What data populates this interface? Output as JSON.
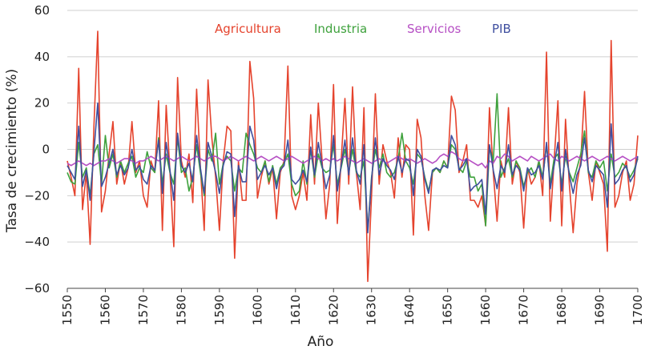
{
  "chart_data": {
    "type": "line",
    "xlabel": "Año",
    "ylabel": "Tasa de crecimiento (%)",
    "x": [
      1550,
      1551,
      1552,
      1553,
      1554,
      1555,
      1556,
      1557,
      1558,
      1559,
      1560,
      1561,
      1562,
      1563,
      1564,
      1565,
      1566,
      1567,
      1568,
      1569,
      1570,
      1571,
      1572,
      1573,
      1574,
      1575,
      1576,
      1577,
      1578,
      1579,
      1580,
      1581,
      1582,
      1583,
      1584,
      1585,
      1586,
      1587,
      1588,
      1589,
      1590,
      1591,
      1592,
      1593,
      1594,
      1595,
      1596,
      1597,
      1598,
      1599,
      1600,
      1601,
      1602,
      1603,
      1604,
      1605,
      1606,
      1607,
      1608,
      1609,
      1610,
      1611,
      1612,
      1613,
      1614,
      1615,
      1616,
      1617,
      1618,
      1619,
      1620,
      1621,
      1622,
      1623,
      1624,
      1625,
      1626,
      1627,
      1628,
      1629,
      1630,
      1631,
      1632,
      1633,
      1634,
      1635,
      1636,
      1637,
      1638,
      1639,
      1640,
      1641,
      1642,
      1643,
      1644,
      1645,
      1646,
      1647,
      1648,
      1649,
      1650,
      1651,
      1652,
      1653,
      1654,
      1655,
      1656,
      1657,
      1658,
      1659,
      1660,
      1661,
      1662,
      1663,
      1664,
      1665,
      1666,
      1667,
      1668,
      1669,
      1670,
      1671,
      1672,
      1673,
      1674,
      1675,
      1676,
      1677,
      1678,
      1679,
      1680,
      1681,
      1682,
      1683,
      1684,
      1685,
      1686,
      1687,
      1688,
      1689,
      1690,
      1691,
      1692,
      1693,
      1694,
      1695,
      1696,
      1697,
      1698,
      1699,
      1700
    ],
    "series": [
      {
        "name": "Agricultura",
        "color": "#e5432d",
        "values": [
          -5,
          -12,
          -20,
          35,
          -26,
          -10,
          -41,
          10,
          51,
          -27,
          -18,
          -2,
          12,
          -15,
          -5,
          -15,
          -8,
          12,
          -10,
          -5,
          -20,
          -25,
          -5,
          -10,
          21,
          -35,
          19,
          -10,
          -42,
          31,
          -5,
          -12,
          -2,
          -23,
          26,
          -8,
          -35,
          30,
          5,
          -12,
          -35,
          -5,
          10,
          8,
          -47,
          -5,
          -22,
          -22,
          38,
          22,
          -21,
          -12,
          -5,
          -15,
          -8,
          -30,
          -10,
          -5,
          36,
          -20,
          -26,
          -20,
          -10,
          -22,
          15,
          -15,
          20,
          -5,
          -30,
          -15,
          28,
          -32,
          -5,
          22,
          -15,
          27,
          -10,
          -26,
          18,
          -57,
          -20,
          24,
          -15,
          2,
          -5,
          -10,
          -21,
          5,
          -12,
          2,
          0,
          -37,
          13,
          5,
          -20,
          -35,
          -10,
          -8,
          -10,
          -5,
          -8,
          23,
          17,
          -10,
          -5,
          2,
          -22,
          -22,
          -25,
          -20,
          -33,
          18,
          -10,
          -31,
          -5,
          -12,
          18,
          -15,
          -5,
          -10,
          -34,
          -8,
          -15,
          -12,
          -5,
          -20,
          42,
          -31,
          -5,
          21,
          -33,
          13,
          -15,
          -36,
          -15,
          -5,
          25,
          -10,
          -22,
          -5,
          -10,
          -15,
          -44,
          47,
          -25,
          -20,
          -10,
          -5,
          -22,
          -15,
          6
        ]
      },
      {
        "name": "Industria",
        "color": "#3ea13c",
        "values": [
          -10,
          -14,
          -15,
          3,
          -12,
          -8,
          -20,
          -2,
          2,
          -15,
          6,
          -8,
          -2,
          -12,
          -5,
          -10,
          -6,
          -3,
          -12,
          -8,
          -10,
          -1,
          -8,
          -10,
          5,
          -15,
          -2,
          -10,
          -15,
          5,
          -10,
          -8,
          -18,
          -12,
          2,
          -10,
          -20,
          0,
          -5,
          7,
          -15,
          -6,
          -3,
          -5,
          -18,
          -8,
          -10,
          7,
          2,
          -2,
          -8,
          -10,
          -5,
          -14,
          -7,
          -15,
          -8,
          -6,
          -2,
          -15,
          -20,
          -18,
          -5,
          -15,
          0,
          -12,
          -2,
          -8,
          -10,
          -9,
          2,
          -15,
          -8,
          0,
          -10,
          0,
          -10,
          -12,
          -5,
          -35,
          -12,
          0,
          -8,
          -2,
          -10,
          -12,
          -10,
          -4,
          7,
          -5,
          -8,
          -15,
          -2,
          -4,
          -12,
          -18,
          -10,
          -8,
          -10,
          -5,
          -8,
          2,
          0,
          -8,
          -10,
          -5,
          -12,
          -12,
          -18,
          -15,
          -33,
          1,
          -5,
          24,
          -12,
          -8,
          -4,
          -12,
          -5,
          -8,
          -16,
          -10,
          -8,
          -12,
          -5,
          -12,
          2,
          -15,
          -4,
          -2,
          -15,
          -3,
          -10,
          -14,
          -8,
          -2,
          8,
          -10,
          -12,
          -5,
          -8,
          -5,
          -18,
          -2,
          -12,
          -10,
          -6,
          -8,
          -12,
          -9,
          -4
        ]
      },
      {
        "name": "Servicios",
        "color": "#b64fc4",
        "values": [
          -6,
          -7,
          -6,
          -5,
          -6,
          -7,
          -6,
          -7,
          -6,
          -5,
          -5,
          -4,
          -5,
          -6,
          -5,
          -4,
          -4,
          -5,
          -6,
          -5,
          -5,
          -4,
          -3,
          -4,
          -5,
          -4,
          -3,
          -4,
          -5,
          -4,
          -3,
          -4,
          -5,
          -4,
          -3,
          -4,
          -5,
          -4,
          -3,
          -3,
          -4,
          -5,
          -4,
          -3,
          -4,
          -5,
          -4,
          -3,
          -4,
          -5,
          -4,
          -3,
          -4,
          -5,
          -4,
          -3,
          -4,
          -5,
          -4,
          -3,
          -4,
          -5,
          -6,
          -5,
          -4,
          -3,
          -4,
          -5,
          -4,
          -5,
          -4,
          -5,
          -4,
          -3,
          -4,
          -5,
          -6,
          -5,
          -4,
          -5,
          -6,
          -5,
          -4,
          -5,
          -6,
          -5,
          -4,
          -3,
          -4,
          -5,
          -4,
          -5,
          -6,
          -5,
          -4,
          -5,
          -6,
          -5,
          -3,
          -2,
          -3,
          -1,
          -2,
          -4,
          -5,
          -4,
          -5,
          -6,
          -7,
          -6,
          -8,
          -5,
          -6,
          -3,
          -4,
          -2,
          -3,
          -5,
          -4,
          -3,
          -4,
          -5,
          -3,
          -4,
          -5,
          -4,
          -3,
          -2,
          -4,
          -5,
          -3,
          -4,
          -5,
          -4,
          -3,
          -4,
          -5,
          -4,
          -3,
          -4,
          -5,
          -4,
          -3,
          -4,
          -5,
          -4,
          -3,
          -4,
          -5,
          -4,
          -3
        ]
      },
      {
        "name": "PIB",
        "color": "#3f4f9f",
        "values": [
          -7,
          -10,
          -13,
          10,
          -16,
          -9,
          -22,
          -1,
          20,
          -16,
          -12,
          -6,
          0,
          -11,
          -7,
          -11,
          -8,
          0,
          -9,
          -7,
          -13,
          -15,
          -7,
          -9,
          4,
          -19,
          3,
          -9,
          -22,
          7,
          -7,
          -10,
          -6,
          -14,
          6,
          -8,
          -19,
          3,
          -3,
          -10,
          -19,
          -7,
          -1,
          -2,
          -29,
          -7,
          -14,
          -14,
          10,
          4,
          -13,
          -10,
          -7,
          -11,
          -8,
          -17,
          -9,
          -7,
          4,
          -13,
          -15,
          -13,
          -9,
          -14,
          1,
          -11,
          3,
          -7,
          -17,
          -11,
          6,
          -18,
          -7,
          4,
          -11,
          5,
          -9,
          -15,
          2,
          -36,
          -13,
          5,
          -11,
          -4,
          -7,
          -9,
          -13,
          -3,
          -10,
          -4,
          -5,
          -20,
          0,
          -3,
          -13,
          -19,
          -9,
          -8,
          -9,
          -7,
          -8,
          6,
          2,
          -9,
          -7,
          -4,
          -18,
          -16,
          -15,
          -13,
          -28,
          2,
          -9,
          -17,
          -7,
          -10,
          2,
          -11,
          -7,
          -9,
          -18,
          -8,
          -11,
          -10,
          -7,
          -13,
          3,
          -17,
          -7,
          3,
          -18,
          0,
          -11,
          -19,
          -11,
          -7,
          5,
          -9,
          -14,
          -7,
          -9,
          -11,
          -25,
          11,
          -15,
          -13,
          -9,
          -7,
          -14,
          -11,
          -3
        ]
      }
    ],
    "xlim": [
      1550,
      1700
    ],
    "xticks": [
      1550,
      1560,
      1570,
      1580,
      1590,
      1600,
      1610,
      1620,
      1630,
      1640,
      1650,
      1660,
      1670,
      1680,
      1690,
      1700
    ],
    "ylim": [
      -60,
      60
    ],
    "yticks": [
      {
        "value": -60,
        "label": "−60"
      },
      {
        "value": -40,
        "label": "−40"
      },
      {
        "value": -20,
        "label": "−20"
      },
      0,
      20,
      40,
      60
    ],
    "grid": true,
    "legend": "top"
  }
}
